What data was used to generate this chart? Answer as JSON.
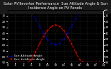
{
  "title": "Solar PV/Inverter Performance  Sun Altitude Angle & Sun Incidence Angle on PV Panels",
  "legend1": "Sun Altitude Angle",
  "legend2": "Sun Incidence Angle",
  "x_values": [
    0,
    1,
    2,
    3,
    4,
    5,
    6,
    7,
    8,
    9,
    10,
    11,
    12,
    13,
    14,
    15,
    16,
    17,
    18,
    19,
    20,
    21,
    22,
    23,
    24
  ],
  "altitude_values": [
    0,
    0,
    0,
    0,
    0,
    0,
    5,
    15,
    28,
    40,
    50,
    57,
    60,
    57,
    50,
    40,
    28,
    15,
    5,
    0,
    0,
    0,
    0,
    0,
    0
  ],
  "incidence_values": [
    90,
    90,
    90,
    90,
    90,
    90,
    85,
    72,
    58,
    45,
    35,
    28,
    25,
    28,
    35,
    45,
    58,
    72,
    85,
    90,
    90,
    90,
    90,
    90,
    90
  ],
  "xlim": [
    0,
    24
  ],
  "ylim_left": [
    0,
    90
  ],
  "ylim_right": [
    0,
    90
  ],
  "bg_color": "#000000",
  "plot_bg_color": "#000000",
  "title_bg_color": "#1a1a1a",
  "grid_color": "#555555",
  "line1_color": "#0000ff",
  "line2_color": "#ff0000",
  "title_color": "#ffffff",
  "tick_color": "#ffffff",
  "title_fontsize": 3.8,
  "legend_fontsize": 3.2,
  "tick_fontsize": 3.0,
  "x_ticks": [
    0,
    2,
    4,
    6,
    8,
    10,
    12,
    14,
    16,
    18,
    20,
    22,
    24
  ],
  "x_tick_labels": [
    "0",
    "2",
    "4",
    "6",
    "8",
    "10",
    "12",
    "14",
    "16",
    "18",
    "20",
    "22",
    "24"
  ],
  "y_ticks": [
    0,
    10,
    20,
    30,
    40,
    50,
    60,
    70,
    80,
    90
  ]
}
